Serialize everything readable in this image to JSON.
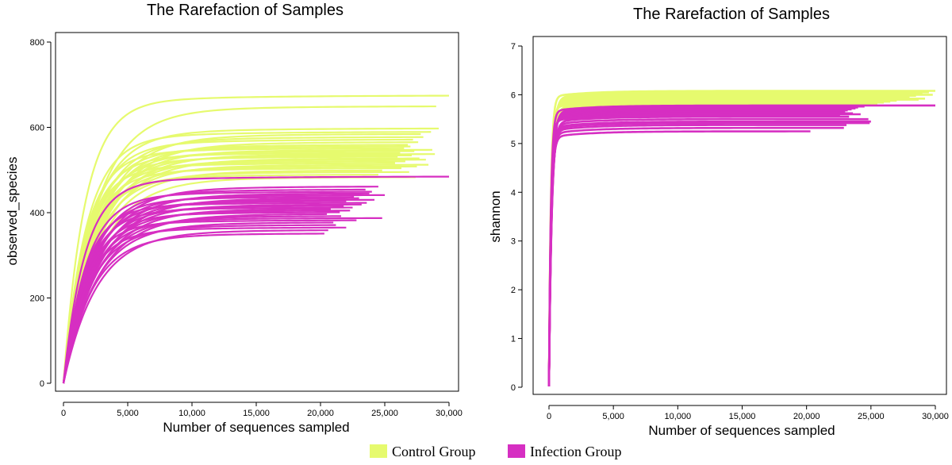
{
  "legend": [
    {
      "label": "Control Group",
      "color": "#e6fa6e"
    },
    {
      "label": "Infection Group",
      "color": "#d62fc2"
    }
  ],
  "chart_data": [
    {
      "type": "line",
      "title": "The Rarefaction of Samples",
      "xlabel": "Number of sequences sampled",
      "ylabel": "observed_species",
      "xlim": [
        0,
        30000
      ],
      "ylim": [
        0,
        800
      ],
      "xticks": [
        0,
        5000,
        10000,
        15000,
        20000,
        25000,
        30000
      ],
      "xtick_labels": [
        "0",
        "5,000",
        "10,000",
        "15,000",
        "20,000",
        "25,000",
        "30,000"
      ],
      "yticks": [
        0,
        200,
        400,
        600,
        800
      ],
      "ytick_labels": [
        "0",
        "200",
        "400",
        "600",
        "800"
      ],
      "series": [
        {
          "group": "Control Group",
          "asymptotes": [
            675,
            650,
            598,
            590,
            585,
            578,
            572,
            566,
            560,
            556,
            552,
            548,
            545,
            541,
            538,
            535,
            532,
            528,
            525,
            521,
            517,
            513,
            509,
            505,
            500,
            496,
            490,
            484
          ],
          "ends": [
            30000,
            29000,
            29200,
            28600,
            27800,
            28000,
            27200,
            27600,
            26800,
            27000,
            26500,
            28700,
            27300,
            26200,
            28900,
            27100,
            26000,
            27700,
            28200,
            26600,
            25800,
            28400,
            27500,
            26300,
            24800,
            26900,
            24500,
            27400
          ]
        },
        {
          "group": "Infection Group",
          "asymptotes": [
            485,
            462,
            455,
            450,
            446,
            442,
            438,
            435,
            431,
            428,
            424,
            420,
            417,
            413,
            410,
            406,
            402,
            398,
            393,
            388,
            383,
            378,
            372,
            366,
            360,
            352
          ],
          "ends": [
            30000,
            24500,
            23500,
            24000,
            23800,
            25000,
            22600,
            23000,
            24200,
            22000,
            23600,
            23200,
            21800,
            22500,
            20800,
            22300,
            21500,
            20500,
            21600,
            24800,
            22800,
            21000,
            21200,
            22000,
            20600,
            20300
          ]
        }
      ]
    },
    {
      "type": "line",
      "title": "The Rarefaction of Samples",
      "xlabel": "Number of sequences sampled",
      "ylabel": "shannon",
      "xlim": [
        0,
        30000
      ],
      "ylim": [
        0,
        7
      ],
      "xticks": [
        0,
        5000,
        10000,
        15000,
        20000,
        25000,
        30000
      ],
      "xtick_labels": [
        "0",
        "5,000",
        "10,000",
        "15,000",
        "20,000",
        "25,000",
        "30,000"
      ],
      "yticks": [
        0,
        1,
        2,
        3,
        4,
        5,
        6,
        7
      ],
      "ytick_labels": [
        "0",
        "1",
        "2",
        "3",
        "4",
        "5",
        "6",
        "7"
      ],
      "series": [
        {
          "group": "Control Group",
          "asymptotes": [
            6.08,
            6.05,
            6.03,
            6.0,
            5.98,
            5.96,
            5.94,
            5.92,
            5.9,
            5.88,
            5.86,
            5.84,
            5.82,
            5.8,
            5.79,
            5.78,
            5.77,
            5.76
          ],
          "ends": [
            30000,
            29500,
            29000,
            29800,
            28500,
            28000,
            27500,
            29200,
            28700,
            27000,
            26500,
            26000,
            25500,
            25000,
            24500,
            24000,
            23500,
            23000
          ]
        },
        {
          "group": "Infection Group",
          "asymptotes": [
            5.78,
            5.76,
            5.74,
            5.72,
            5.7,
            5.68,
            5.66,
            5.64,
            5.62,
            5.6,
            5.58,
            5.55,
            5.5,
            5.45,
            5.42,
            5.38,
            5.32,
            5.25
          ],
          "ends": [
            30000,
            24500,
            24000,
            23800,
            23500,
            23200,
            23000,
            22800,
            23600,
            24200,
            22600,
            23300,
            24800,
            25000,
            24900,
            23100,
            22900,
            20300
          ]
        }
      ]
    }
  ]
}
